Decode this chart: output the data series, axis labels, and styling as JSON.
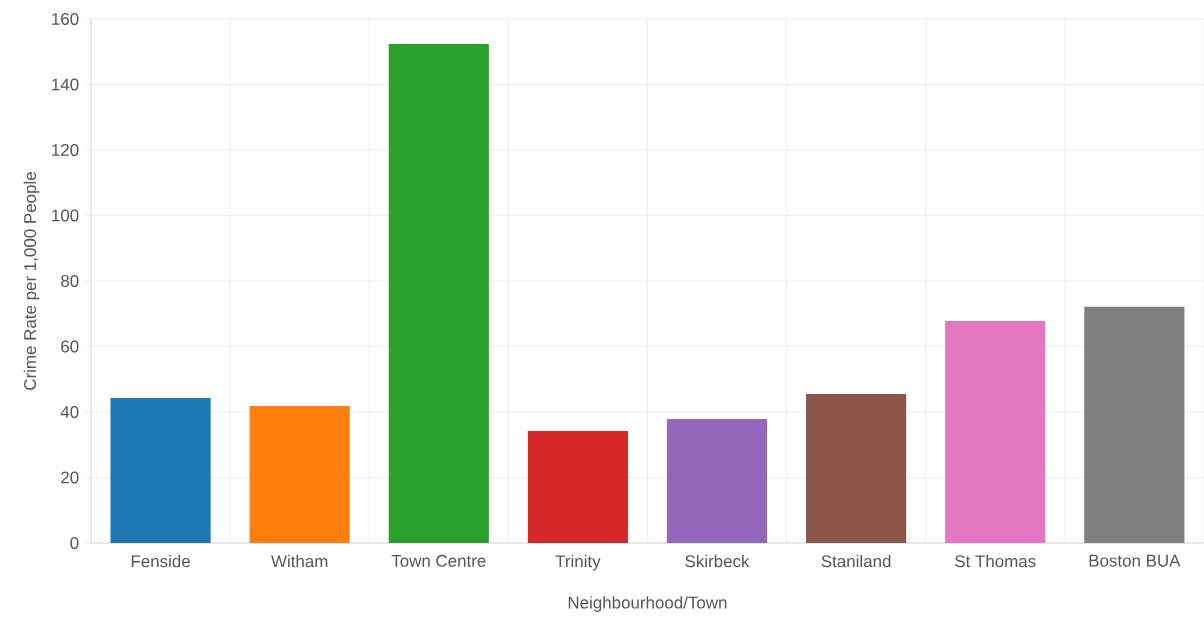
{
  "chart_data": {
    "type": "bar",
    "xlabel": "Neighbourhood/Town",
    "ylabel": "Crime Rate per 1,000 People",
    "categories": [
      "Fenside",
      "Witham",
      "Town Centre",
      "Trinity",
      "Skirbeck",
      "Staniland",
      "St Thomas",
      "Boston BUA"
    ],
    "values": [
      44.3,
      41.8,
      152.4,
      34.2,
      37.9,
      45.5,
      67.8,
      72.1
    ],
    "colors": [
      "#1f77b4",
      "#ff7f0e",
      "#2ca02c",
      "#d62728",
      "#9467bd",
      "#8c564b",
      "#e377c2",
      "#7f7f7f"
    ],
    "ylim": [
      0,
      160
    ],
    "yticks": [
      0,
      20,
      40,
      60,
      80,
      100,
      120,
      140,
      160
    ],
    "grid": true
  }
}
